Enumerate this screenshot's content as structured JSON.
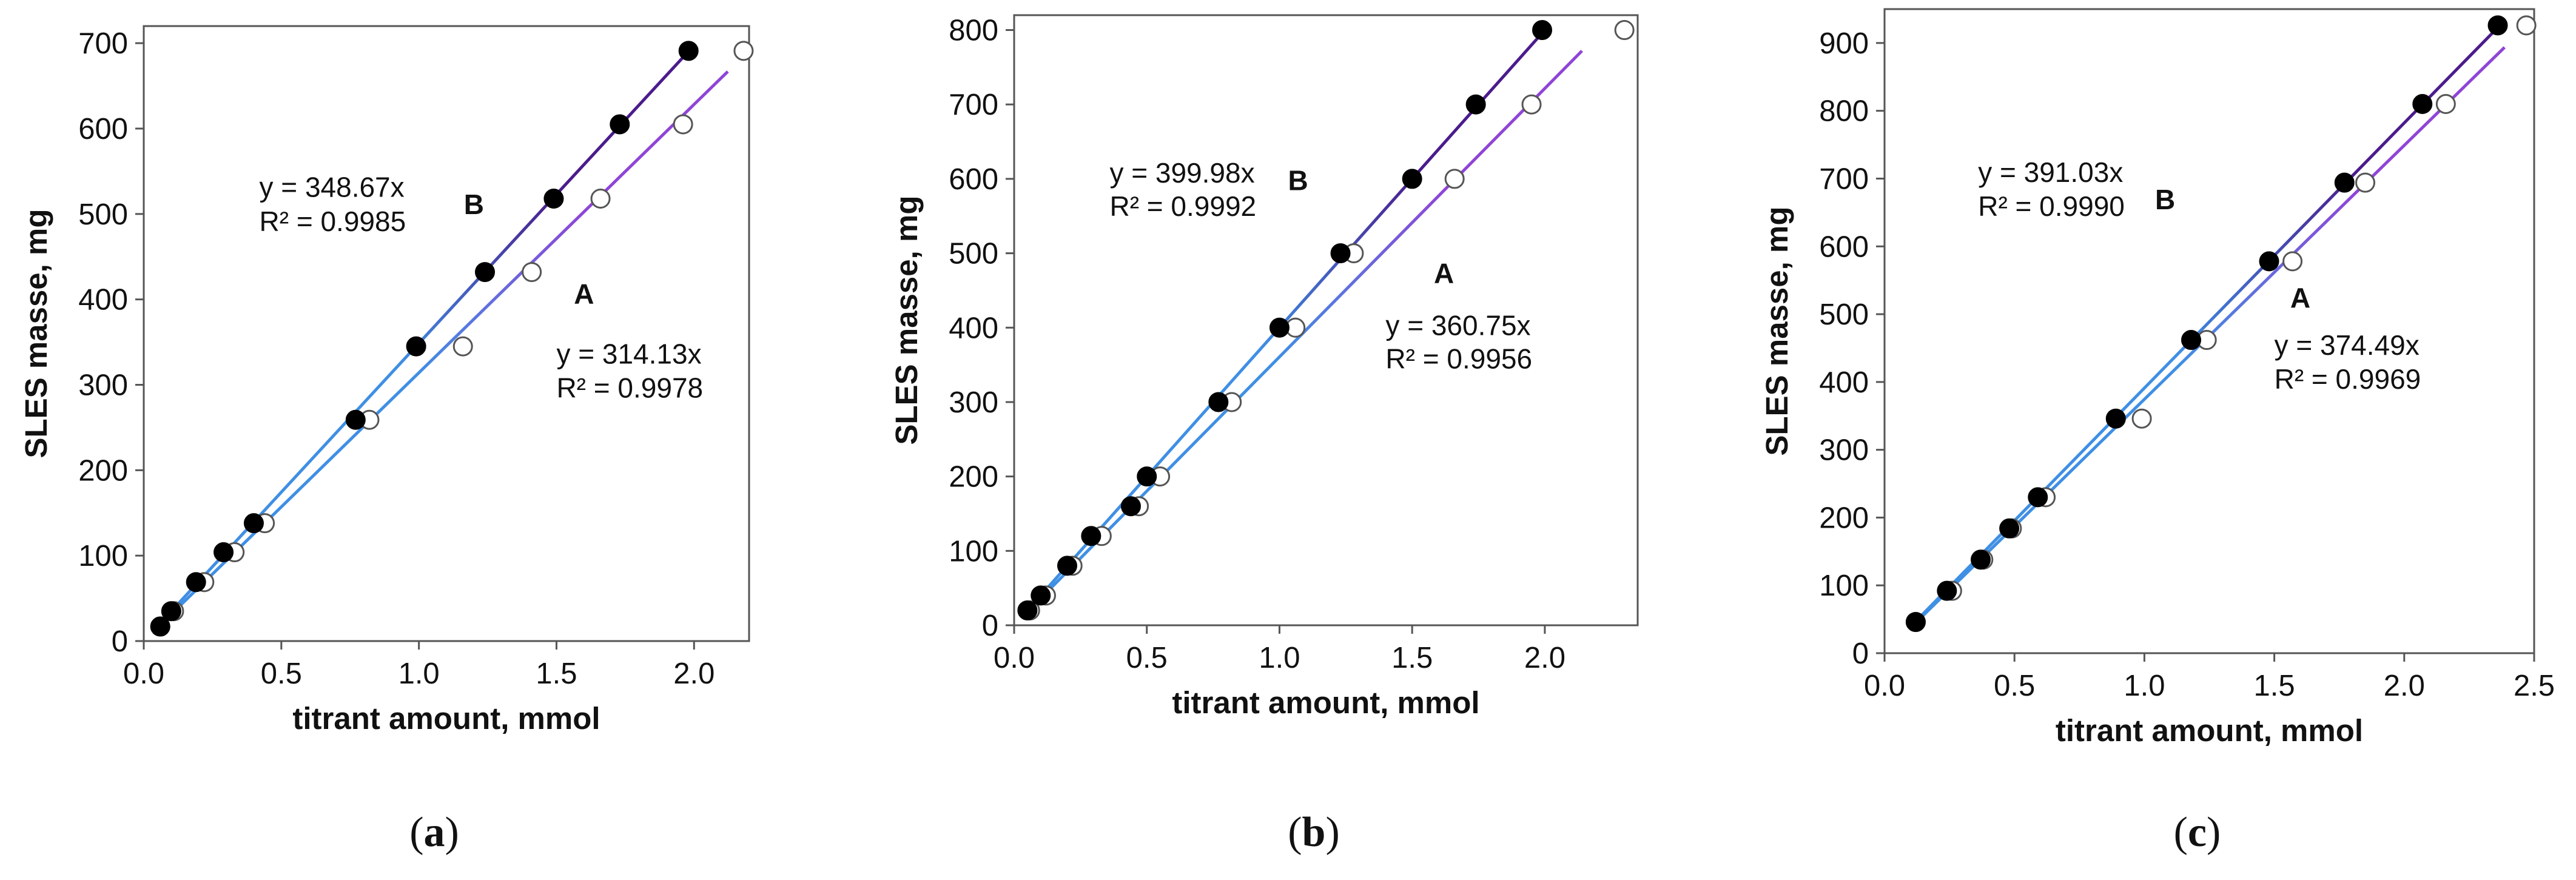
{
  "colors": {
    "fit_light": "#3f8fe4",
    "fit_a_dark": "#8f45d6",
    "fit_b_dark": "#4b1c8c",
    "marker_b": "#000000",
    "marker_a_edge": "#555555",
    "axis": "#555555"
  },
  "chart_data": [
    {
      "type": "scatter",
      "panel": "(a)",
      "panel_letter": "a",
      "xlabel": "titrant amount, mmol",
      "ylabel": "SLES masse, mg",
      "xlim": [
        0,
        2.2
      ],
      "ylim": [
        0,
        720
      ],
      "xticks": [
        0.0,
        0.5,
        1.0,
        1.5,
        2.0
      ],
      "yticks": [
        0,
        100,
        200,
        300,
        400,
        500,
        600,
        700
      ],
      "x_decimals": 1,
      "grid": false,
      "series": [
        {
          "name": "B",
          "marker": "filled",
          "slope": 348.67,
          "equation": "y = 348.67x",
          "r2": "R² = 0.9985",
          "x": [
            0.06,
            0.1,
            0.19,
            0.29,
            0.4,
            0.77,
            0.99,
            1.24,
            1.49,
            1.73,
            1.98
          ],
          "y": [
            17,
            35,
            69,
            104,
            138,
            259,
            345,
            432,
            518,
            605,
            691
          ]
        },
        {
          "name": "A",
          "marker": "open",
          "slope": 314.13,
          "equation": "y = 314.13x",
          "r2": "R² = 0.9978",
          "x": [
            0.06,
            0.11,
            0.22,
            0.33,
            0.44,
            0.82,
            1.16,
            1.41,
            1.66,
            1.96,
            2.18
          ],
          "y": [
            17,
            35,
            69,
            104,
            138,
            259,
            345,
            432,
            518,
            605,
            691
          ]
        }
      ],
      "annotations": [
        {
          "text_key": "equation",
          "series": 0,
          "x": 0.42,
          "y": 520
        },
        {
          "text_key": "r2",
          "series": 0,
          "x": 0.42,
          "y": 480
        },
        {
          "text_key": "name",
          "series": 0,
          "x": 1.2,
          "y": 500
        },
        {
          "text_key": "name",
          "series": 1,
          "x": 1.6,
          "y": 395
        },
        {
          "text_key": "equation",
          "series": 1,
          "x": 1.5,
          "y": 325
        },
        {
          "text_key": "r2",
          "series": 1,
          "x": 1.5,
          "y": 285
        }
      ]
    },
    {
      "type": "scatter",
      "panel": "(b)",
      "panel_letter": "b",
      "xlabel": "titrant amount, mmol",
      "ylabel": "SLES masse, mg",
      "xlim": [
        -0.0,
        2.35
      ],
      "ylim": [
        0,
        820
      ],
      "xticks": [
        0.0,
        0.5,
        1.0,
        1.5,
        2.0
      ],
      "yticks": [
        0,
        100,
        200,
        300,
        400,
        500,
        600,
        700,
        800
      ],
      "x_decimals": 1,
      "grid": false,
      "series": [
        {
          "name": "B",
          "marker": "filled",
          "slope": 399.98,
          "equation": "y = 399.98x",
          "r2": "R² = 0.9992",
          "x": [
            0.05,
            0.1,
            0.2,
            0.29,
            0.44,
            0.5,
            0.77,
            1.0,
            1.23,
            1.5,
            1.74,
            1.99
          ],
          "y": [
            20,
            40,
            80,
            120,
            160,
            200,
            300,
            400,
            500,
            600,
            700,
            800
          ]
        },
        {
          "name": "A",
          "marker": "open",
          "slope": 360.75,
          "equation": "y = 360.75x",
          "r2": "R² = 0.9956",
          "x": [
            0.06,
            0.12,
            0.22,
            0.33,
            0.47,
            0.55,
            0.82,
            1.06,
            1.28,
            1.66,
            1.95,
            2.3
          ],
          "y": [
            20,
            40,
            80,
            120,
            160,
            200,
            300,
            400,
            500,
            600,
            700,
            800
          ]
        }
      ],
      "annotations": [
        {
          "text_key": "equation",
          "series": 0,
          "x": 0.36,
          "y": 595
        },
        {
          "text_key": "r2",
          "series": 0,
          "x": 0.36,
          "y": 550
        },
        {
          "text_key": "name",
          "series": 0,
          "x": 1.07,
          "y": 585
        },
        {
          "text_key": "name",
          "series": 1,
          "x": 1.62,
          "y": 460
        },
        {
          "text_key": "equation",
          "series": 1,
          "x": 1.4,
          "y": 390
        },
        {
          "text_key": "r2",
          "series": 1,
          "x": 1.4,
          "y": 345
        }
      ]
    },
    {
      "type": "scatter",
      "panel": "(c)",
      "panel_letter": "c",
      "xlabel": "titrant amount, mmol",
      "ylabel": "SLES masse, mg",
      "xlim": [
        0,
        2.5
      ],
      "ylim": [
        0,
        950
      ],
      "xticks": [
        0.0,
        0.5,
        1.0,
        1.5,
        2.0,
        2.5
      ],
      "yticks": [
        0,
        100,
        200,
        300,
        400,
        500,
        600,
        700,
        800,
        900
      ],
      "x_decimals": 1,
      "grid": false,
      "series": [
        {
          "name": "B",
          "marker": "filled",
          "slope": 391.03,
          "equation": "y = 391.03x",
          "r2": "R² = 0.9990",
          "x": [
            0.12,
            0.24,
            0.37,
            0.48,
            0.59,
            0.89,
            1.18,
            1.48,
            1.77,
            2.07,
            2.36
          ],
          "y": [
            46,
            92,
            138,
            184,
            230,
            346,
            462,
            578,
            694,
            810,
            926
          ]
        },
        {
          "name": "A",
          "marker": "open",
          "slope": 374.49,
          "equation": "y = 374.49x",
          "r2": "R² = 0.9969",
          "x": [
            0.12,
            0.26,
            0.38,
            0.49,
            0.62,
            0.99,
            1.24,
            1.57,
            1.85,
            2.16,
            2.47
          ],
          "y": [
            46,
            92,
            138,
            184,
            230,
            346,
            462,
            578,
            694,
            810,
            926
          ]
        }
      ],
      "annotations": [
        {
          "text_key": "equation",
          "series": 0,
          "x": 0.36,
          "y": 695
        },
        {
          "text_key": "r2",
          "series": 0,
          "x": 0.36,
          "y": 645
        },
        {
          "text_key": "name",
          "series": 0,
          "x": 1.08,
          "y": 655
        },
        {
          "text_key": "name",
          "series": 1,
          "x": 1.6,
          "y": 510
        },
        {
          "text_key": "equation",
          "series": 1,
          "x": 1.5,
          "y": 440
        },
        {
          "text_key": "r2",
          "series": 1,
          "x": 1.5,
          "y": 390
        }
      ]
    }
  ]
}
